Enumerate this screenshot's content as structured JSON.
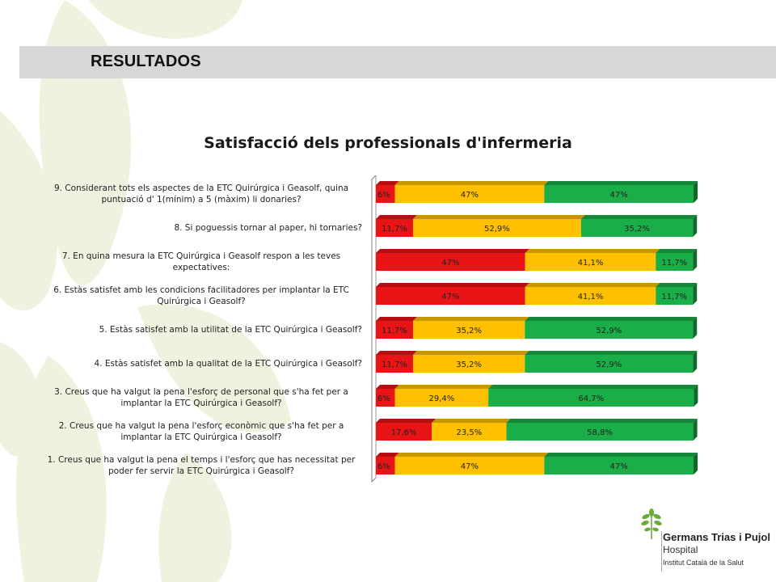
{
  "header": {
    "title": "RESULTADOS"
  },
  "logo": {
    "name": "Germans Trias i Pujol",
    "sub": "Hospital",
    "institute": "Institut Català de la Salut"
  },
  "colors": {
    "red": "#e81416",
    "yellow": "#ffc000",
    "green": "#1aae48",
    "header_bar": "#d7d7d7",
    "decor": "#eef3df",
    "logo_green": "#6aab3a"
  },
  "chart_data": {
    "type": "bar",
    "orientation": "horizontal",
    "stacked": true,
    "percent_stacked": true,
    "title": "Satisfacció dels professionals d'infermeria",
    "categories": [
      [
        "9.\tConsiderant tots els aspectes de la ETC Quirúrgica i Geasolf, quina",
        "puntuació d' 1(mínim) a 5 (màxim) li donaries?"
      ],
      [
        "8.\tSi poguessis tornar al paper, hi tornaries?"
      ],
      [
        "7.\tEn quina mesura la ETC Quirúrgica i Geasolf respon a les teves",
        "expectatives:"
      ],
      [
        "6.\tEstàs satisfet amb les condicions facilitadores per implantar la ETC",
        "Quirúrgica i Geasolf?"
      ],
      [
        "5.\tEstàs satisfet amb la utilitat de la ETC Quirúrgica i Geasolf?"
      ],
      [
        "4.\tEstàs satisfet amb la qualitat de la ETC Quirúrgica i Geasolf?"
      ],
      [
        "3.\tCreus que ha valgut la pena l'esforç de personal que s'ha fet per a",
        "implantar la ETC Quirúrgica i Geasolf?"
      ],
      [
        "2.\tCreus que ha valgut la pena l'esforç econòmic que s'ha fet per a",
        "implantar la ETC Quirúrgica i Geasolf?"
      ],
      [
        "1. Creus que ha valgut la pena el temps i l'esforç que has necessitat per",
        "poder fer servir la ETC Quirúrgica i Geasolf?"
      ]
    ],
    "series": [
      {
        "color": "#e81416",
        "values": [
          6,
          11.7,
          47,
          47,
          11.7,
          11.7,
          6,
          17.6,
          6
        ],
        "labels": [
          "6%",
          "11,7%",
          "47%",
          "47%",
          "11,7%",
          "11,7%",
          "6%",
          "17,6%",
          "6%"
        ]
      },
      {
        "color": "#ffc000",
        "values": [
          47,
          52.9,
          41.1,
          41.1,
          35.2,
          35.2,
          29.4,
          23.5,
          47
        ],
        "labels": [
          "47%",
          "52,9%",
          "41,1%",
          "41,1%",
          "35,2%",
          "35,2%",
          "29,4%",
          "23,5%",
          "47%"
        ]
      },
      {
        "color": "#1aae48",
        "values": [
          47,
          35.2,
          11.7,
          11.7,
          52.9,
          52.9,
          64.7,
          58.8,
          47
        ],
        "labels": [
          "47%",
          "35,2%",
          "11,7%",
          "11,7%",
          "52,9%",
          "52,9%",
          "64,7%",
          "58,8%",
          "47%"
        ]
      }
    ],
    "xlim": [
      0,
      100
    ],
    "grid": false,
    "legend": "none"
  }
}
